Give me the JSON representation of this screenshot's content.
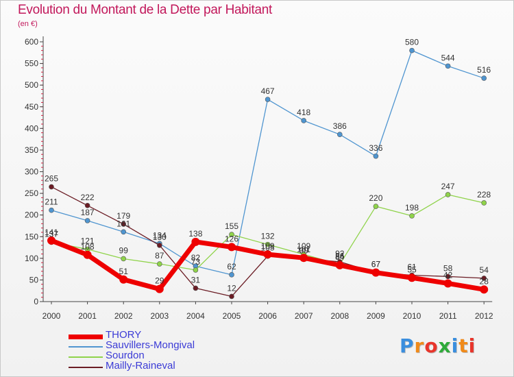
{
  "title": "Evolution du Montant de la Dette par Habitant",
  "unit": "(en €)",
  "logo": {
    "text": "Proxiti",
    "colors": [
      "#3a8ede",
      "#f08a1a",
      "#e8352b",
      "#2eaa3a",
      "#3a8ede",
      "#f08a1a",
      "#e8352b"
    ]
  },
  "chart_data": {
    "type": "line",
    "categories": [
      "2000",
      "2001",
      "2002",
      "2003",
      "2004",
      "2005",
      "2006",
      "2007",
      "2008",
      "2009",
      "2010",
      "2011",
      "2012"
    ],
    "ylim": [
      0,
      600
    ],
    "yticks": [
      0,
      50,
      100,
      150,
      200,
      250,
      300,
      350,
      400,
      450,
      500,
      550,
      600
    ],
    "grid": false,
    "legend_position": "bottom-left",
    "series": [
      {
        "name": "THORY",
        "color": "#ee0000",
        "emphasis": true,
        "values": [
          141,
          108,
          51,
          29,
          138,
          126,
          109,
          101,
          84,
          67,
          55,
          42,
          28
        ]
      },
      {
        "name": "Sauvillers-Mongival",
        "color": "#4f95d0",
        "values": [
          211,
          187,
          161,
          134,
          82,
          62,
          467,
          418,
          386,
          336,
          580,
          544,
          516
        ]
      },
      {
        "name": "Sourdon",
        "color": "#8fd34a",
        "values": [
          137,
          121,
          99,
          87,
          73,
          155,
          132,
          109,
          86,
          220,
          198,
          247,
          228
        ]
      },
      {
        "name": "Mailly-Raineval",
        "color": "#6b1c24",
        "values": [
          265,
          222,
          179,
          130,
          31,
          12,
          105,
          99,
          92,
          67,
          61,
          58,
          54
        ]
      }
    ]
  }
}
